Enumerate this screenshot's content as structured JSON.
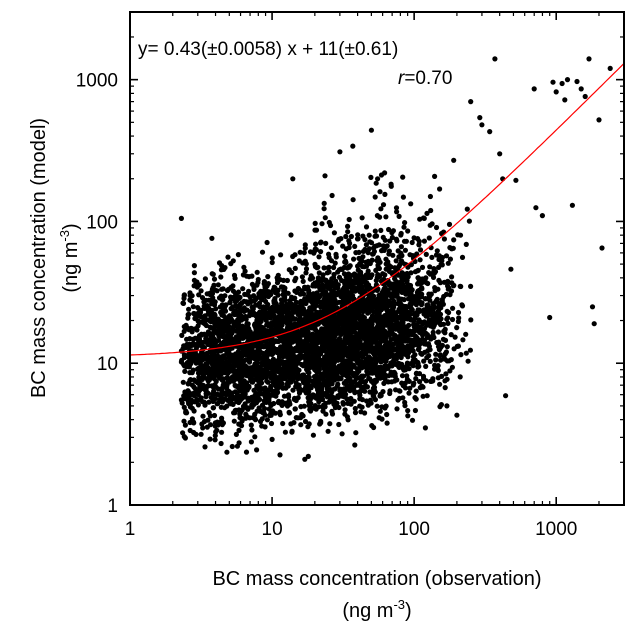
{
  "chart_data": {
    "type": "scatter",
    "xscale": "log",
    "yscale": "log",
    "xlim": [
      1,
      3000
    ],
    "ylim": [
      1,
      3000
    ],
    "xticks": [
      {
        "value": 1,
        "label": "1"
      },
      {
        "value": 10,
        "label": "10"
      },
      {
        "value": 100,
        "label": "100"
      },
      {
        "value": 1000,
        "label": "1000"
      }
    ],
    "yticks": [
      {
        "value": 1,
        "label": "1"
      },
      {
        "value": 10,
        "label": "10"
      },
      {
        "value": 100,
        "label": "100"
      },
      {
        "value": 1000,
        "label": "1000"
      }
    ],
    "xlabel": {
      "line1": "BC mass concentration (observation)",
      "line2_prefix": "(ng m",
      "line2_sup": "-3",
      "line2_suffix": ")"
    },
    "ylabel": {
      "line1": "BC mass concentration (model)",
      "line2_prefix": "(ng m",
      "line2_sup": "-3",
      "line2_suffix": ")"
    },
    "annotations": {
      "equation": "y= 0.43(±0.0058) x + 11(±0.61)",
      "r_symbol": "r",
      "r_value": "=0.70"
    },
    "fit": {
      "slope": 0.43,
      "intercept": 11,
      "color": "#ff0000"
    },
    "points": {
      "color": "#000000",
      "notable": [
        [
          2.3,
          105
        ],
        [
          2.3,
          5.5
        ],
        [
          2.4,
          3.9
        ],
        [
          5.7,
          2.6
        ],
        [
          10,
          2.9
        ],
        [
          14,
          200
        ],
        [
          17,
          2.1
        ],
        [
          18,
          2.2
        ],
        [
          30,
          310
        ],
        [
          37,
          340
        ],
        [
          50,
          440
        ],
        [
          62,
          220
        ],
        [
          120,
          3.5
        ],
        [
          170,
          5.0
        ],
        [
          200,
          4.3
        ],
        [
          190,
          270
        ],
        [
          250,
          700
        ],
        [
          290,
          540
        ],
        [
          300,
          480
        ],
        [
          340,
          430
        ],
        [
          370,
          1400
        ],
        [
          400,
          300
        ],
        [
          420,
          200
        ],
        [
          440,
          5.9
        ],
        [
          480,
          46
        ],
        [
          520,
          195
        ],
        [
          700,
          860
        ],
        [
          720,
          125
        ],
        [
          800,
          110
        ],
        [
          900,
          21
        ],
        [
          950,
          960
        ],
        [
          1000,
          820
        ],
        [
          1100,
          940
        ],
        [
          1150,
          720
        ],
        [
          1200,
          1000
        ],
        [
          1300,
          130
        ],
        [
          1400,
          970
        ],
        [
          1500,
          860
        ],
        [
          1600,
          760
        ],
        [
          1700,
          1400
        ],
        [
          1800,
          25
        ],
        [
          1850,
          19
        ],
        [
          2000,
          520
        ],
        [
          2100,
          65
        ],
        [
          2400,
          1200
        ]
      ],
      "cluster": [
        {
          "x": 20,
          "y": 14,
          "sx": 0.5,
          "sy": 0.25,
          "n": 3600,
          "xmin": 2.3,
          "xmax": 180,
          "ymin": 2.1,
          "ymax": 180
        },
        {
          "x": 60,
          "y": 28,
          "sx": 0.32,
          "sy": 0.34,
          "n": 700,
          "xmin": 20,
          "xmax": 260,
          "ymin": 3.5,
          "ymax": 250
        },
        {
          "x": 4,
          "y": 12,
          "sx": 0.18,
          "sy": 0.28,
          "n": 500,
          "xmin": 2.3,
          "xmax": 12,
          "ymin": 3.0,
          "ymax": 80
        }
      ]
    }
  }
}
